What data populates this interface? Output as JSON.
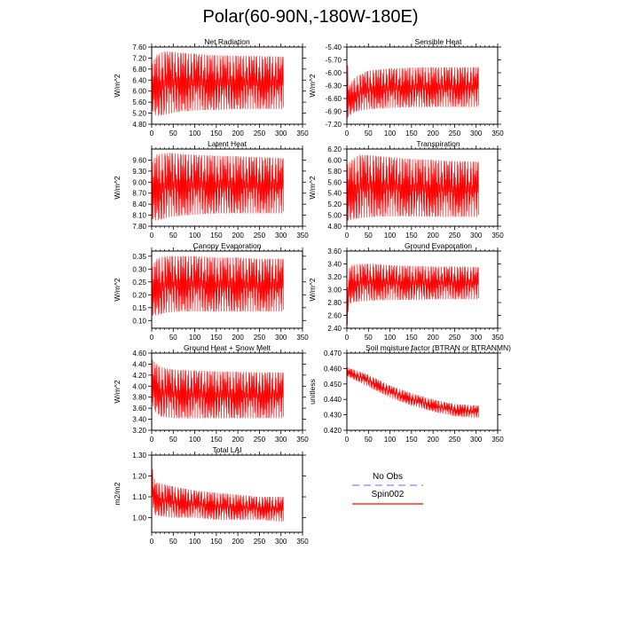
{
  "figure": {
    "title": "Polar(60-90N,-180W-180E)"
  },
  "legend": {
    "entries": [
      {
        "label": "No Obs",
        "color": "#9999ff",
        "style": "dashed"
      },
      {
        "label": "Spin002",
        "color": "#ff0000",
        "style": "solid"
      }
    ]
  },
  "chart_data": [
    {
      "type": "line",
      "title": "Net Radiation",
      "ylabel": "W/m^2",
      "xlim": [
        0,
        350
      ],
      "ylim": [
        4.8,
        7.6
      ],
      "xticks": [
        "0",
        "50",
        "100",
        "150",
        "200",
        "250",
        "300",
        "350"
      ],
      "yticks": [
        "4.80",
        "5.20",
        "5.60",
        "6.00",
        "6.40",
        "6.80",
        "7.20",
        "7.60"
      ],
      "series": [
        {
          "name": "Spin002",
          "color": "#ff0000",
          "x_end": 305,
          "envelope": {
            "x": [
              0,
              10,
              30,
              60,
              100,
              150,
              200,
              250,
              305
            ],
            "max": [
              6.9,
              7.3,
              7.45,
              7.4,
              7.35,
              7.3,
              7.28,
              7.27,
              7.25
            ],
            "min": [
              5.3,
              5.1,
              5.15,
              5.25,
              5.3,
              5.32,
              5.35,
              5.35,
              5.35
            ]
          }
        }
      ]
    },
    {
      "type": "line",
      "title": "Sensible Heat",
      "ylabel": "W/m^2",
      "xlim": [
        0,
        350
      ],
      "ylim": [
        -7.2,
        -5.4
      ],
      "xticks": [
        "0",
        "50",
        "100",
        "150",
        "200",
        "250",
        "300",
        "350"
      ],
      "yticks": [
        "-7.20",
        "-6.90",
        "-6.60",
        "-6.30",
        "-6.00",
        "-5.70",
        "-5.40"
      ],
      "series": [
        {
          "name": "Spin002",
          "color": "#ff0000",
          "x_end": 305,
          "envelope": {
            "x": [
              0,
              5,
              20,
              50,
              100,
              150,
              200,
              250,
              305
            ],
            "max": [
              -5.5,
              -6.3,
              -6.1,
              -5.95,
              -5.9,
              -5.88,
              -5.87,
              -5.87,
              -5.87
            ],
            "min": [
              -7.05,
              -7.0,
              -6.9,
              -6.85,
              -6.82,
              -6.8,
              -6.8,
              -6.8,
              -6.8
            ]
          }
        }
      ]
    },
    {
      "type": "line",
      "title": "Latent Heat",
      "ylabel": "W/m^2",
      "xlim": [
        0,
        350
      ],
      "ylim": [
        7.8,
        9.9
      ],
      "xticks": [
        "0",
        "50",
        "100",
        "150",
        "200",
        "250",
        "300",
        "350"
      ],
      "yticks": [
        "7.80",
        "8.10",
        "8.40",
        "8.70",
        "9.00",
        "9.30",
        "9.60"
      ],
      "series": [
        {
          "name": "Spin002",
          "color": "#ff0000",
          "x_end": 305,
          "envelope": {
            "x": [
              0,
              10,
              40,
              80,
              150,
              200,
              250,
              305
            ],
            "max": [
              9.5,
              9.75,
              9.8,
              9.75,
              9.72,
              9.7,
              9.68,
              9.65
            ],
            "min": [
              8.0,
              7.95,
              8.05,
              8.1,
              8.15,
              8.15,
              8.15,
              8.15
            ]
          }
        }
      ]
    },
    {
      "type": "line",
      "title": "Transpiration",
      "ylabel": "W/m^2",
      "xlim": [
        0,
        350
      ],
      "ylim": [
        4.8,
        6.2
      ],
      "xticks": [
        "0",
        "50",
        "100",
        "150",
        "200",
        "250",
        "300",
        "350"
      ],
      "yticks": [
        "4.80",
        "5.00",
        "5.20",
        "5.40",
        "5.60",
        "5.80",
        "6.00",
        "6.20"
      ],
      "series": [
        {
          "name": "Spin002",
          "color": "#ff0000",
          "x_end": 305,
          "envelope": {
            "x": [
              0,
              10,
              30,
              60,
              100,
              150,
              200,
              250,
              305
            ],
            "max": [
              5.9,
              6.0,
              6.1,
              6.08,
              6.05,
              6.02,
              6.0,
              5.98,
              5.97
            ],
            "min": [
              4.9,
              4.92,
              4.95,
              4.97,
              4.98,
              4.98,
              4.97,
              4.97,
              4.97
            ]
          }
        }
      ]
    },
    {
      "type": "line",
      "title": "Canopy Evaporation",
      "ylabel": "W/m^2",
      "xlim": [
        0,
        350
      ],
      "ylim": [
        0.07,
        0.37
      ],
      "xticks": [
        "0",
        "50",
        "100",
        "150",
        "200",
        "250",
        "300",
        "350"
      ],
      "yticks": [
        "0.10",
        "0.15",
        "0.20",
        "0.25",
        "0.30",
        "0.35"
      ],
      "series": [
        {
          "name": "Spin002",
          "color": "#ff0000",
          "x_end": 305,
          "envelope": {
            "x": [
              0,
              10,
              30,
              60,
              100,
              150,
              200,
              250,
              305
            ],
            "max": [
              0.3,
              0.34,
              0.35,
              0.35,
              0.35,
              0.345,
              0.345,
              0.34,
              0.34
            ],
            "min": [
              0.12,
              0.12,
              0.13,
              0.135,
              0.135,
              0.135,
              0.135,
              0.135,
              0.135
            ]
          }
        }
      ]
    },
    {
      "type": "line",
      "title": "Ground Evaporation",
      "ylabel": "W/m^2",
      "xlim": [
        0,
        350
      ],
      "ylim": [
        2.4,
        3.6
      ],
      "xticks": [
        "0",
        "50",
        "100",
        "150",
        "200",
        "250",
        "300",
        "350"
      ],
      "yticks": [
        "2.40",
        "2.60",
        "2.80",
        "3.00",
        "3.20",
        "3.40",
        "3.60"
      ],
      "series": [
        {
          "name": "Spin002",
          "color": "#ff0000",
          "x_end": 305,
          "envelope": {
            "x": [
              0,
              3,
              10,
              30,
              60,
              100,
              150,
              200,
              250,
              305
            ],
            "max": [
              2.5,
              3.3,
              3.38,
              3.4,
              3.4,
              3.38,
              3.37,
              3.36,
              3.36,
              3.35
            ],
            "min": [
              2.45,
              2.75,
              2.8,
              2.82,
              2.83,
              2.84,
              2.84,
              2.85,
              2.85,
              2.85
            ]
          }
        }
      ]
    },
    {
      "type": "line",
      "title": "Ground Heat + Snow Melt",
      "ylabel": "W/m^2",
      "xlim": [
        0,
        350
      ],
      "ylim": [
        3.2,
        4.6
      ],
      "xticks": [
        "0",
        "50",
        "100",
        "150",
        "200",
        "250",
        "300",
        "350"
      ],
      "yticks": [
        "3.20",
        "3.40",
        "3.60",
        "3.80",
        "4.00",
        "4.20",
        "4.40",
        "4.60"
      ],
      "series": [
        {
          "name": "Spin002",
          "color": "#ff0000",
          "x_end": 305,
          "envelope": {
            "x": [
              0,
              5,
              20,
              50,
              100,
              150,
              200,
              250,
              305
            ],
            "max": [
              4.5,
              4.45,
              4.35,
              4.3,
              4.28,
              4.27,
              4.26,
              4.25,
              4.25
            ],
            "min": [
              3.7,
              3.55,
              3.45,
              3.42,
              3.42,
              3.42,
              3.42,
              3.42,
              3.42
            ]
          }
        }
      ]
    },
    {
      "type": "line",
      "title": "Soil moisture factor (BTRAN or BTRANMN)",
      "ylabel": "unitless",
      "xlim": [
        0,
        350
      ],
      "ylim": [
        0.42,
        0.47
      ],
      "xticks": [
        "0",
        "50",
        "100",
        "150",
        "200",
        "250",
        "300",
        "350"
      ],
      "yticks": [
        "0.420",
        "0.430",
        "0.440",
        "0.450",
        "0.460",
        "0.470"
      ],
      "series": [
        {
          "name": "Spin002",
          "color": "#ff0000",
          "x_end": 305,
          "envelope": {
            "x": [
              0,
              50,
              100,
              150,
              200,
              250,
              305
            ],
            "max": [
              0.461,
              0.456,
              0.449,
              0.444,
              0.44,
              0.437,
              0.436
            ],
            "min": [
              0.455,
              0.448,
              0.441,
              0.436,
              0.432,
              0.429,
              0.428
            ]
          }
        }
      ]
    },
    {
      "type": "line",
      "title": "Total LAI",
      "ylabel": "m2/m2",
      "xlim": [
        0,
        350
      ],
      "ylim": [
        0.93,
        1.3
      ],
      "xticks": [
        "0",
        "50",
        "100",
        "150",
        "200",
        "250",
        "300",
        "350"
      ],
      "yticks": [
        "1.00",
        "1.10",
        "1.20",
        "1.30"
      ],
      "series": [
        {
          "name": "Spin002",
          "color": "#ff0000",
          "x_end": 305,
          "envelope": {
            "x": [
              0,
              3,
              10,
              50,
              100,
              150,
              200,
              250,
              305
            ],
            "max": [
              1.3,
              1.2,
              1.17,
              1.15,
              1.13,
              1.12,
              1.11,
              1.1,
              1.1
            ],
            "min": [
              1.1,
              1.02,
              1.01,
              1.0,
              1.0,
              0.99,
              0.99,
              0.99,
              0.98
            ]
          }
        }
      ]
    }
  ]
}
